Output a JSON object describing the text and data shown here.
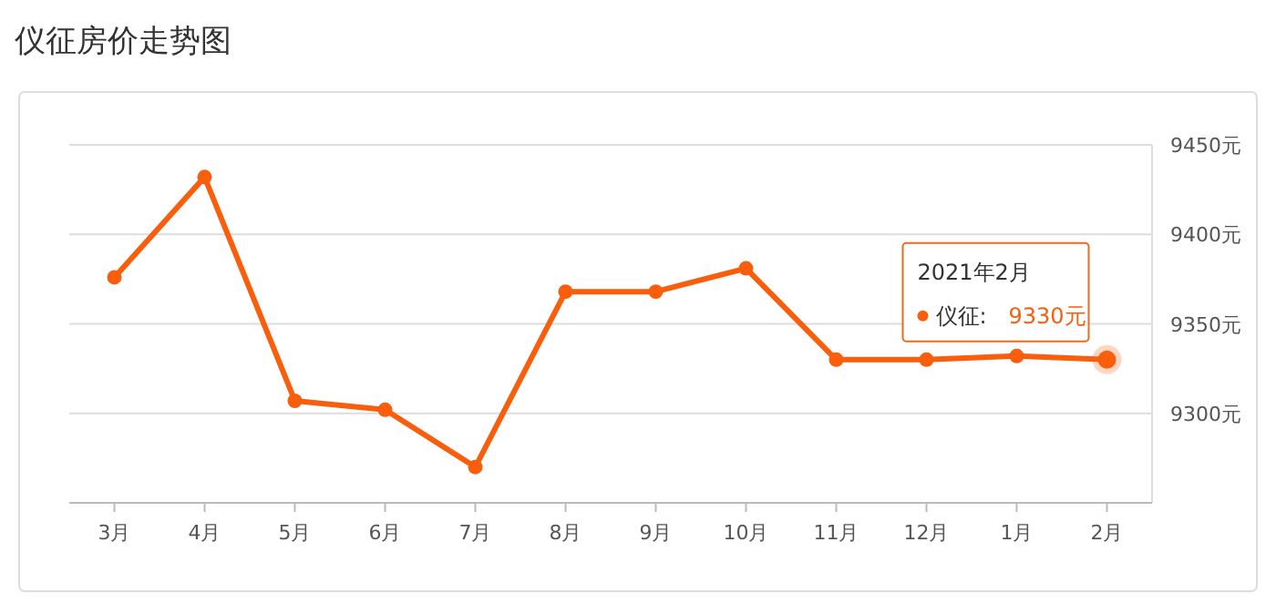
{
  "chart_data": {
    "type": "line",
    "title": "仪征房价走势图",
    "categories": [
      "3月",
      "4月",
      "5月",
      "6月",
      "7月",
      "8月",
      "9月",
      "10月",
      "11月",
      "12月",
      "1月",
      "2月"
    ],
    "series": [
      {
        "name": "仪征:",
        "color": "#f85e0c",
        "values": [
          9376,
          9432,
          9307,
          9302,
          9270,
          9368,
          9368,
          9381,
          9330,
          9330,
          9332,
          9330
        ],
        "value_labels": [
          null,
          null,
          null,
          null,
          null,
          null,
          null,
          null,
          null,
          null,
          null,
          "9330元"
        ]
      }
    ],
    "ylim": [
      9250,
      9450
    ],
    "yticks": [
      {
        "value": 9250,
        "label": null
      },
      {
        "value": 9300,
        "label": "9300元"
      },
      {
        "value": 9350,
        "label": "9350元"
      },
      {
        "value": 9400,
        "label": "9400元"
      },
      {
        "value": 9450,
        "label": "9450元"
      }
    ],
    "grid": "y",
    "legend": "right",
    "marker": "circle",
    "line_style": "solid",
    "annotations": [
      "2021年2月"
    ]
  }
}
